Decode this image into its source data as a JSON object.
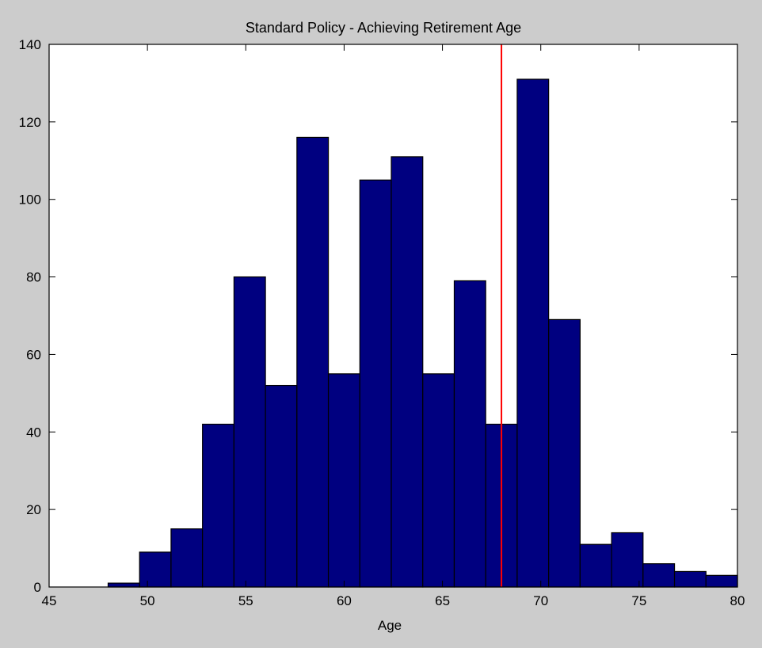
{
  "chart_data": {
    "type": "bar",
    "title": "Standard Policy - Achieving Retirement Age",
    "xlabel": "Age",
    "ylabel": "",
    "xlim": [
      45,
      80
    ],
    "ylim": [
      0,
      140
    ],
    "xticks": [
      45,
      50,
      55,
      60,
      65,
      70,
      75,
      80
    ],
    "yticks": [
      0,
      20,
      40,
      60,
      80,
      100,
      120,
      140
    ],
    "bin_edges": [
      48,
      49.6,
      51.2,
      52.8,
      54.4,
      56,
      57.6,
      59.2,
      60.8,
      62.4,
      64,
      65.6,
      67.2,
      68.8,
      70.4,
      72,
      73.6,
      75.2,
      76.8,
      78.4,
      80
    ],
    "values": [
      1,
      9,
      15,
      42,
      80,
      52,
      116,
      55,
      105,
      111,
      55,
      79,
      42,
      131,
      69,
      11,
      14,
      6,
      4,
      3
    ],
    "reference_line": {
      "x": 68,
      "color": "#ff0000"
    },
    "bar_color": "#000080",
    "grid": false
  }
}
